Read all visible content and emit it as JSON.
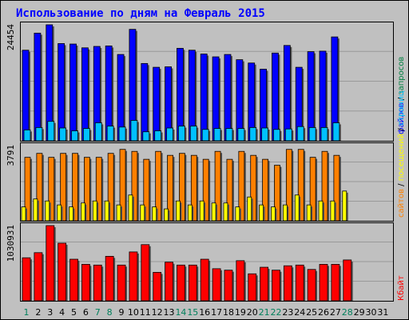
{
  "chart_data": [
    {
      "type": "bar",
      "title": "Использование по дням на Февраль 2015",
      "x": [
        "1",
        "2",
        "3",
        "4",
        "5",
        "6",
        "7",
        "8",
        "9",
        "10",
        "11",
        "12",
        "13",
        "14",
        "15",
        "16",
        "17",
        "18",
        "19",
        "20",
        "21",
        "22",
        "23",
        "24",
        "25",
        "26",
        "27",
        "28",
        "29",
        "30",
        "31"
      ],
      "weekend_days": [
        "1",
        "7",
        "8",
        "14",
        "15",
        "21",
        "22",
        "28"
      ],
      "future_days": [
        "29",
        "30",
        "31"
      ],
      "ymax_label": "24454",
      "ylim": [
        0,
        24454
      ],
      "legend": [
        {
          "label": "файлов",
          "color": "#0000ff"
        },
        {
          "label": "запросов",
          "color": "#008040"
        }
      ],
      "series": [
        {
          "name": "Запросов",
          "color": "#0000ff",
          "values": [
            19100,
            22700,
            24454,
            20500,
            20400,
            19600,
            19900,
            20000,
            18200,
            23500,
            16300,
            15500,
            15600,
            19500,
            19100,
            18300,
            17700,
            18200,
            17100,
            16400,
            15100,
            18500,
            20100,
            15500,
            18800,
            18900,
            21900,
            null,
            null,
            null,
            null
          ]
        },
        {
          "name": "Файлов",
          "color": "#00c0ff",
          "values": [
            2300,
            2800,
            4100,
            2700,
            2100,
            2600,
            3800,
            3100,
            2900,
            4300,
            1900,
            2100,
            2700,
            3100,
            3100,
            2400,
            2600,
            2600,
            2600,
            2800,
            2700,
            2400,
            2500,
            3000,
            2800,
            2800,
            3800,
            null,
            null,
            null,
            null
          ]
        }
      ]
    },
    {
      "type": "bar",
      "ymax_label": "3791",
      "ylim": [
        0,
        3791
      ],
      "legend": [
        {
          "label": "сайтов",
          "color": "#ff8000"
        },
        {
          "label": "посещений",
          "color": "#ffff00"
        },
        {
          "label": "страниц",
          "color": "#00c0ff"
        }
      ],
      "series": [
        {
          "name": "Страниц",
          "color": "#ff8000",
          "values": [
            3200,
            3400,
            3200,
            3400,
            3400,
            3200,
            3200,
            3400,
            3600,
            3500,
            3100,
            3500,
            3300,
            3400,
            3300,
            3100,
            3500,
            3100,
            3500,
            3300,
            3100,
            2800,
            3600,
            3600,
            3200,
            3500,
            3300,
            null,
            null,
            null,
            null
          ]
        },
        {
          "name": "Посещений",
          "color": "#ffff00",
          "values": [
            700,
            1100,
            1000,
            800,
            700,
            900,
            1000,
            1000,
            800,
            1300,
            800,
            700,
            600,
            1000,
            800,
            1000,
            900,
            900,
            700,
            1200,
            800,
            700,
            800,
            1300,
            800,
            1000,
            1000,
            1500,
            null,
            null,
            null
          ]
        }
      ]
    },
    {
      "type": "bar",
      "ymax_label": "1030931",
      "ylim": [
        0,
        1030931
      ],
      "legend": [
        {
          "label": "Кбайт",
          "color": "#ff0000"
        }
      ],
      "series": [
        {
          "name": "Кбайт",
          "color": "#ff0000",
          "values": [
            590000,
            660000,
            1030931,
            790000,
            570000,
            500000,
            490000,
            610000,
            490000,
            670000,
            770000,
            390000,
            530000,
            490000,
            490000,
            570000,
            440000,
            420000,
            550000,
            370000,
            460000,
            420000,
            480000,
            490000,
            430000,
            500000,
            500000,
            560000,
            null,
            null,
            null
          ]
        }
      ]
    }
  ],
  "colors": {
    "border": "#000000",
    "frame_bg": "#c0c0c0",
    "title_color": "#0000ff",
    "weekday_label": "#000000",
    "weekend_label": "#00805c"
  }
}
